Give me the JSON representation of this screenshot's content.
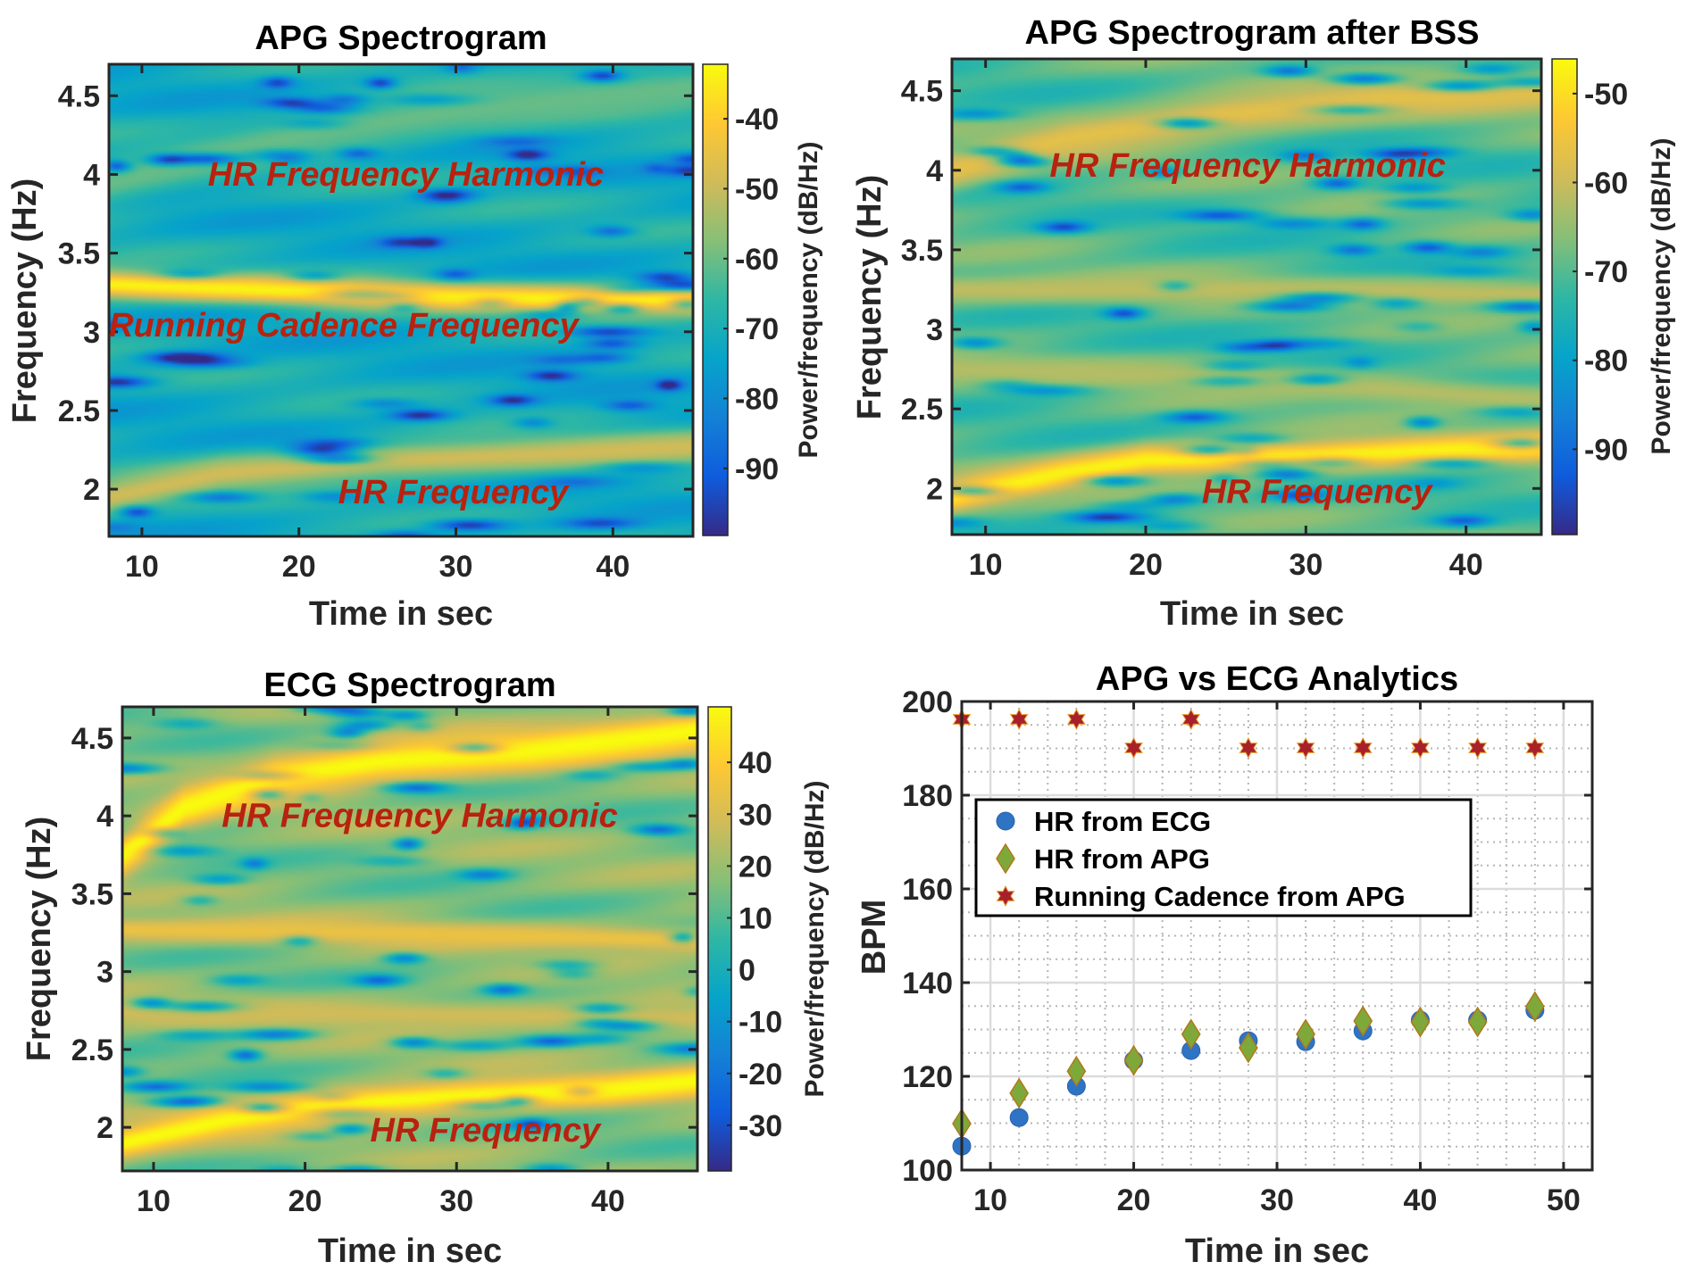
{
  "colors": {
    "annotation": "#b8220f",
    "ecg_marker": "#2f73c4",
    "apg_marker": "#7fa83a",
    "apg_marker_edge": "#b07a1a",
    "cadence_marker": "#a8202a",
    "cadence_marker_edge": "#e8a030",
    "parula": [
      "#352a87",
      "#0f5cdd",
      "#1481d6",
      "#06a4ca",
      "#2eb7a4",
      "#87bf77",
      "#d1bb59",
      "#fec832",
      "#f9fb0e"
    ]
  },
  "chart_data": [
    {
      "type": "heatmap",
      "id": "apg",
      "title": "APG Spectrogram",
      "xlabel": "Time in sec",
      "ylabel": "Frequency (Hz)",
      "colorbar_label": "Power/frequency (dB/Hz)",
      "xlim": [
        7.9,
        45.1
      ],
      "ylim": [
        1.7,
        4.7
      ],
      "clim": [
        -99.6,
        -32.2
      ],
      "xticks": [
        10,
        20,
        30,
        40
      ],
      "yticks": [
        2,
        2.5,
        3,
        3.5,
        4,
        4.5
      ],
      "yticklabels": [
        "2",
        "2.5",
        "3",
        "3.5",
        "4",
        "4.5"
      ],
      "cticks": [
        -40,
        -50,
        -60,
        -70,
        -80,
        -90
      ],
      "background_level": 0.42,
      "ridges": [
        {
          "name": "cadence",
          "t": [
            8,
            20,
            30,
            45
          ],
          "f": [
            3.3,
            3.26,
            3.22,
            3.2
          ],
          "level": 0.98,
          "width": 0.09
        },
        {
          "name": "hr",
          "t": [
            8,
            15,
            25,
            35,
            45
          ],
          "f": [
            1.95,
            2.1,
            2.18,
            2.22,
            2.27
          ],
          "level": 0.75,
          "width": 0.11
        },
        {
          "name": "harmonic",
          "t": [
            8,
            20,
            30,
            45
          ],
          "f": [
            3.95,
            4.25,
            4.4,
            4.55
          ],
          "level": 0.58,
          "width": 0.16
        }
      ],
      "annotations": [
        {
          "text": "HR Frequency Harmonic",
          "x": 14.2,
          "y": 3.93
        },
        {
          "text": "Running Cadence Frequency",
          "x": 7.9,
          "y": 2.97
        },
        {
          "text": "HR Frequency",
          "x": 22.5,
          "y": 1.91
        }
      ]
    },
    {
      "type": "heatmap",
      "id": "apg_bss",
      "title": "APG Spectrogram after BSS",
      "xlabel": "Time in sec",
      "ylabel": "Frequency (Hz)",
      "colorbar_label": "Power/frequency (dB/Hz)",
      "xlim": [
        7.9,
        44.7
      ],
      "ylim": [
        1.71,
        4.7
      ],
      "clim": [
        -99.6,
        -46.1
      ],
      "xticks": [
        10,
        20,
        30,
        40
      ],
      "yticks": [
        2,
        2.5,
        3,
        3.5,
        4,
        4.5
      ],
      "yticklabels": [
        "2",
        "2.5",
        "3",
        "3.5",
        "4",
        "4.5"
      ],
      "cticks": [
        -50,
        -60,
        -70,
        -80,
        -90
      ],
      "background_level": 0.55,
      "ridges": [
        {
          "name": "hr",
          "t": [
            8,
            15,
            20,
            30,
            45
          ],
          "f": [
            1.95,
            2.1,
            2.18,
            2.2,
            2.27
          ],
          "level": 0.98,
          "width": 0.1
        },
        {
          "name": "harmonic",
          "t": [
            8,
            15,
            25,
            35,
            45
          ],
          "f": [
            4.0,
            4.2,
            4.35,
            4.45,
            4.5
          ],
          "level": 0.8,
          "width": 0.13
        },
        {
          "name": "cadence",
          "t": [
            8,
            25,
            45
          ],
          "f": [
            3.25,
            3.25,
            3.22
          ],
          "level": 0.72,
          "width": 0.09
        },
        {
          "name": "mid",
          "t": [
            8,
            25,
            45
          ],
          "f": [
            2.75,
            2.7,
            2.55
          ],
          "level": 0.7,
          "width": 0.1
        }
      ],
      "annotations": [
        {
          "text": "HR Frequency Harmonic",
          "x": 14.0,
          "y": 3.96
        },
        {
          "text": "HR Frequency",
          "x": 23.5,
          "y": 1.91
        }
      ]
    },
    {
      "type": "heatmap",
      "id": "ecg",
      "title": "ECG Spectrogram",
      "xlabel": "Time in sec",
      "ylabel": "Frequency (Hz)",
      "colorbar_label": "Power/frequency (dB/Hz)",
      "xlim": [
        7.94,
        45.9
      ],
      "ylim": [
        1.72,
        4.7
      ],
      "clim": [
        -38.8,
        50.7
      ],
      "xticks": [
        10,
        20,
        30,
        40
      ],
      "yticks": [
        2,
        2.5,
        3,
        3.5,
        4,
        4.5
      ],
      "yticklabels": [
        "2",
        "2.5",
        "3",
        "3.5",
        "4",
        "4.5"
      ],
      "cticks": [
        40,
        30,
        20,
        10,
        0,
        -10,
        -20,
        -30
      ],
      "background_level": 0.62,
      "ridges": [
        {
          "name": "hr",
          "t": [
            8,
            15,
            22,
            30,
            40,
            46
          ],
          "f": [
            1.9,
            2.05,
            2.15,
            2.2,
            2.24,
            2.3
          ],
          "level": 1.0,
          "width": 0.1
        },
        {
          "name": "harmonic",
          "t": [
            8,
            12,
            18,
            25,
            35,
            46
          ],
          "f": [
            3.75,
            4.05,
            4.25,
            4.35,
            4.42,
            4.55
          ],
          "level": 1.0,
          "width": 0.13
        },
        {
          "name": "cadence",
          "t": [
            8,
            25,
            46
          ],
          "f": [
            3.27,
            3.25,
            3.2
          ],
          "level": 0.82,
          "width": 0.08
        },
        {
          "name": "mid",
          "t": [
            8,
            30,
            46
          ],
          "f": [
            2.75,
            2.72,
            2.7
          ],
          "level": 0.75,
          "width": 0.1
        }
      ],
      "annotations": [
        {
          "text": "HR Frequency Harmonic",
          "x": 14.5,
          "y": 3.93
        },
        {
          "text": "HR Frequency",
          "x": 24.3,
          "y": 1.91
        }
      ]
    },
    {
      "type": "scatter",
      "id": "analytics",
      "title": "APG vs ECG Analytics",
      "xlabel": "Time in sec",
      "ylabel": "BPM",
      "xlim": [
        8,
        52
      ],
      "ylim": [
        100,
        200
      ],
      "xticks": [
        10,
        20,
        30,
        40,
        50
      ],
      "yticks": [
        100,
        120,
        140,
        160,
        180,
        200
      ],
      "grid": true,
      "minor_grid": true,
      "legend_position": "upper-left",
      "x": [
        8,
        12,
        16,
        20,
        24,
        28,
        32,
        36,
        40,
        44,
        48
      ],
      "series": [
        {
          "name": "HR from ECG",
          "marker": "circle",
          "values": [
            105.1,
            111.2,
            117.9,
            123.4,
            125.5,
            127.6,
            127.4,
            129.7,
            132.0,
            132.0,
            134.1
          ]
        },
        {
          "name": "HR from APG",
          "marker": "diamond",
          "values": [
            109.9,
            116.4,
            121.1,
            123.4,
            129.0,
            126.1,
            129.0,
            131.8,
            131.6,
            131.6,
            134.9
          ]
        },
        {
          "name": "Running Cadence from APG",
          "marker": "hexagram",
          "values": [
            196.2,
            196.2,
            196.2,
            190.1,
            196.2,
            190.1,
            190.1,
            190.1,
            190.1,
            190.1,
            190.1
          ]
        }
      ]
    }
  ]
}
